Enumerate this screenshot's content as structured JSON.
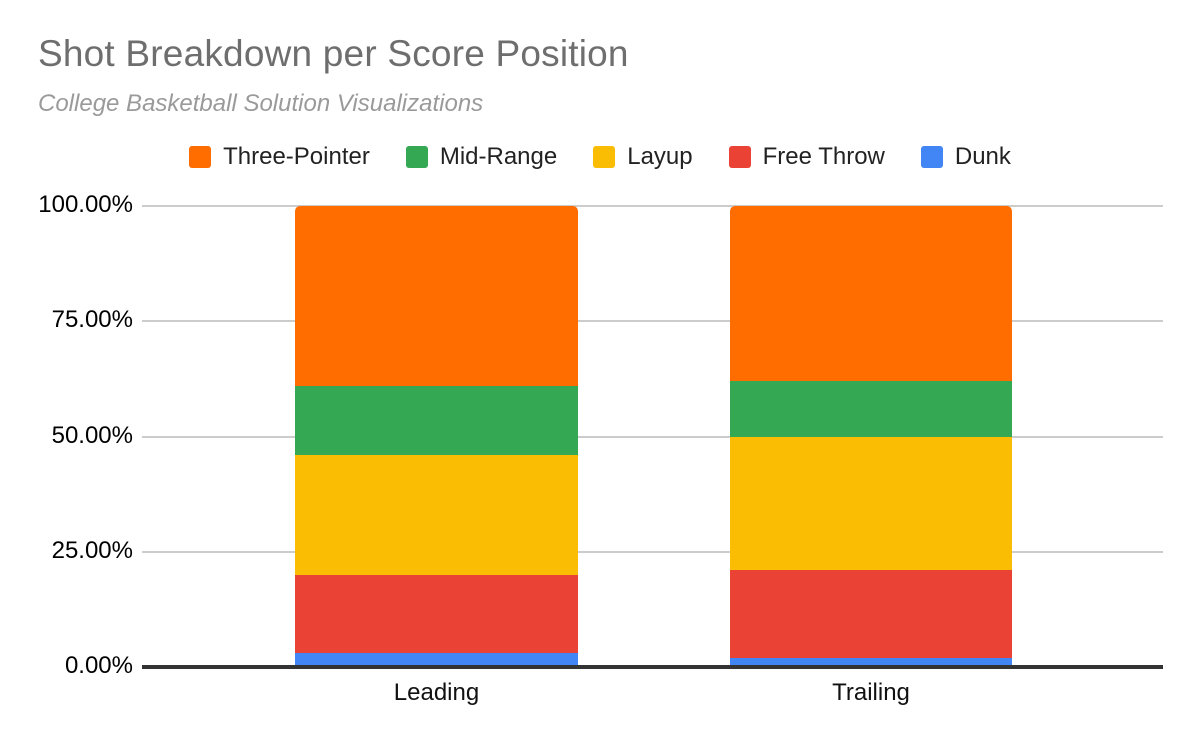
{
  "header": {
    "title": "Shot Breakdown per Score Position",
    "subtitle": "College Basketball Solution Visualizations"
  },
  "chart_data": {
    "type": "bar",
    "variant": "100%-stacked-column",
    "title": "Shot Breakdown per Score Position",
    "subtitle": "College Basketball Solution Visualizations",
    "categories": [
      "Leading",
      "Trailing"
    ],
    "series": [
      {
        "name": "Three-Pointer",
        "color": "#FF6D00",
        "values": [
          39,
          38
        ]
      },
      {
        "name": "Mid-Range",
        "color": "#34A853",
        "values": [
          15,
          12
        ]
      },
      {
        "name": "Layup",
        "color": "#FBBC04",
        "values": [
          26,
          29
        ]
      },
      {
        "name": "Free Throw",
        "color": "#EA4335",
        "values": [
          17,
          19
        ]
      },
      {
        "name": "Dunk",
        "color": "#4285F4",
        "values": [
          3,
          2
        ]
      }
    ],
    "value_unit": "%",
    "xlabel": "",
    "ylabel": "",
    "ylim": [
      0,
      100
    ],
    "y_ticks": [
      {
        "label": "0.00%",
        "value": 0
      },
      {
        "label": "25.00%",
        "value": 25
      },
      {
        "label": "50.00%",
        "value": 50
      },
      {
        "label": "75.00%",
        "value": 75
      },
      {
        "label": "100.00%",
        "value": 100
      }
    ],
    "grid": true,
    "legend_position": "top"
  }
}
